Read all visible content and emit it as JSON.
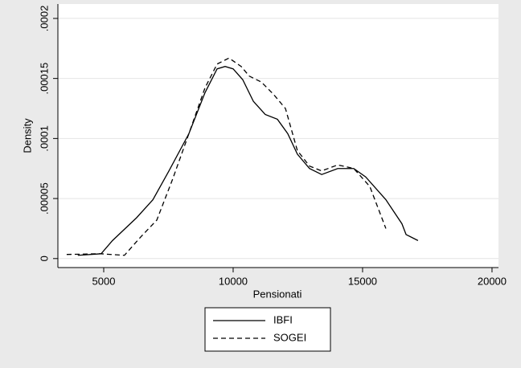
{
  "chart_data": {
    "type": "line",
    "x_label": "Pensionati",
    "y_label": "Density",
    "xlim": [
      3230,
      20250
    ],
    "ylim": [
      -7.5e-06,
      0.000212
    ],
    "xticks": [
      5000,
      10000,
      15000,
      20000
    ],
    "yticks": [
      0,
      {
        "value": 5e-05,
        "label": ".00005"
      },
      {
        "value": 0.0001,
        "label": ".0001"
      },
      {
        "value": 0.00015,
        "label": ".00015"
      },
      {
        "value": 0.0002,
        "label": ".0002"
      }
    ],
    "grid": true,
    "series": [
      {
        "name": "IBFI",
        "color": "#000000",
        "style": "solid",
        "x": [
          4000,
          4900,
          5340,
          6270,
          6900,
          7520,
          8290,
          8910,
          9380,
          9690,
          10000,
          10370,
          10780,
          11240,
          11710,
          12110,
          12480,
          12950,
          13420,
          14040,
          14660,
          15120,
          15900,
          16520,
          16680,
          17140
        ],
        "values": [
          2.7e-06,
          4e-06,
          1.5e-05,
          3.4e-05,
          4.9e-05,
          7.3e-05,
          0.000104,
          0.000138,
          0.000158,
          0.00016,
          0.000158,
          0.000149,
          0.000131,
          0.00012,
          0.000116,
          0.000104,
          8.7e-05,
          7.5e-05,
          7e-05,
          7.5e-05,
          7.5e-05,
          6.8e-05,
          4.9e-05,
          2.9e-05,
          2e-05,
          1.5e-05
        ]
      },
      {
        "name": "SOGEI",
        "color": "#000000",
        "style": "dashed",
        "x": [
          3570,
          4870,
          5800,
          6430,
          7050,
          7660,
          8290,
          8910,
          9380,
          9840,
          10310,
          10620,
          11090,
          11550,
          12020,
          12480,
          12950,
          13420,
          14040,
          14660,
          15280,
          15900
        ],
        "values": [
          3.4e-06,
          4e-06,
          2.7e-06,
          1.8e-05,
          3.2e-05,
          6.6e-05,
          0.000104,
          0.000142,
          0.000162,
          0.000167,
          0.00016,
          0.000152,
          0.000147,
          0.000137,
          0.000125,
          9e-05,
          7.7e-05,
          7.3e-05,
          7.8e-05,
          7.5e-05,
          6e-05,
          2.5e-05
        ]
      }
    ]
  }
}
